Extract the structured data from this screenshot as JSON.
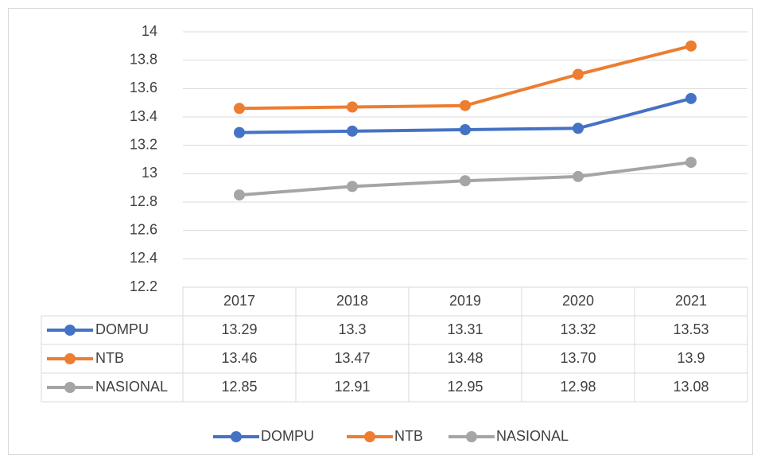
{
  "chart_data": {
    "type": "line",
    "categories": [
      "2017",
      "2018",
      "2019",
      "2020",
      "2021"
    ],
    "series": [
      {
        "name": "DOMPU",
        "color": "#4472c4",
        "values": [
          13.29,
          13.3,
          13.31,
          13.32,
          13.53
        ]
      },
      {
        "name": "NTB",
        "color": "#ed7d31",
        "values": [
          13.46,
          13.47,
          13.48,
          13.7,
          13.9
        ],
        "value_labels": [
          "13.46",
          "13.47",
          "13.48",
          "13.70",
          "13.9"
        ]
      },
      {
        "name": "NASIONAL",
        "color": "#a5a5a5",
        "values": [
          12.85,
          12.91,
          12.95,
          12.98,
          13.08
        ]
      }
    ],
    "ylim": [
      12.2,
      14
    ],
    "yticks": [
      12.2,
      12.4,
      12.6,
      12.8,
      13,
      13.2,
      13.4,
      13.6,
      13.8,
      14
    ],
    "grid": true,
    "legend": "bottom",
    "data_table": true
  }
}
